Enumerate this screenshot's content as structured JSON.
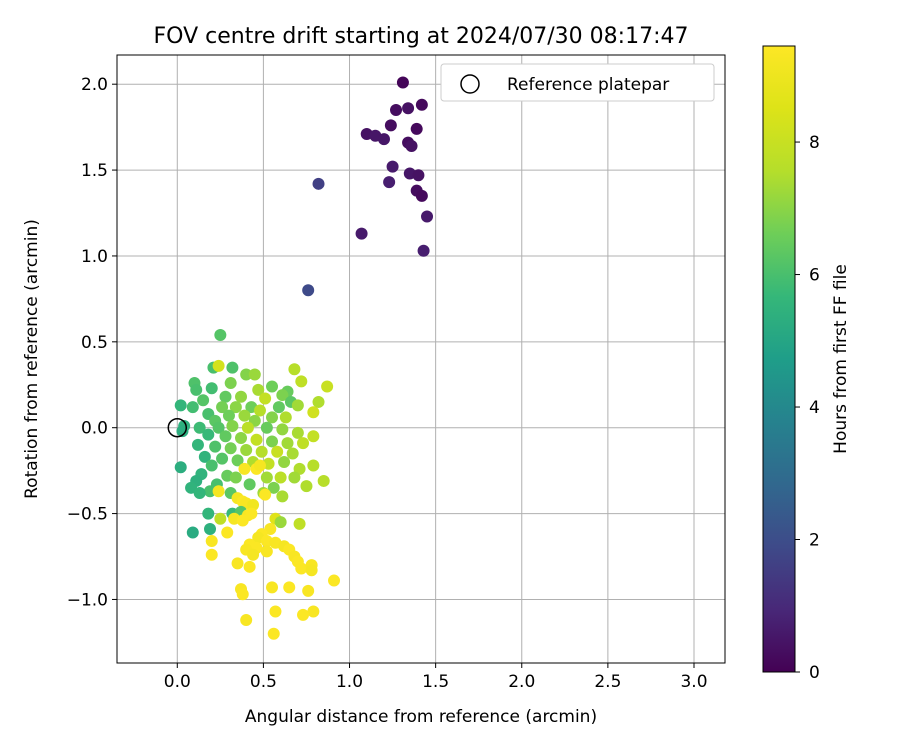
{
  "chart_data": {
    "type": "scatter",
    "title": "FOV centre drift starting at 2024/07/30 08:17:47",
    "xlabel": "Angular distance from reference (arcmin)",
    "ylabel": "Rotation from reference (arcmin)",
    "xlim": [
      -0.35,
      3.18
    ],
    "ylim": [
      -1.37,
      2.17
    ],
    "xticks": [
      0.0,
      0.5,
      1.0,
      1.5,
      2.0,
      2.5,
      3.0
    ],
    "xtick_labels": [
      "0.0",
      "0.5",
      "1.0",
      "1.5",
      "2.0",
      "2.5",
      "3.0"
    ],
    "yticks": [
      -1.0,
      -0.5,
      0.0,
      0.5,
      1.0,
      1.5,
      2.0
    ],
    "ytick_labels": [
      "−1.0",
      "−0.5",
      "0.0",
      "0.5",
      "1.0",
      "1.5",
      "2.0"
    ],
    "grid": true,
    "legend": {
      "position": "top-right",
      "entries": [
        "Reference platepar"
      ]
    },
    "reference_point": {
      "x": 0.0,
      "y": 0.0,
      "marker": "open-circle"
    },
    "colorbar": {
      "label": "Hours from first FF file",
      "colormap": "viridis",
      "range": [
        0,
        9.45
      ],
      "ticks": [
        0,
        2,
        4,
        6,
        8
      ],
      "tick_labels": [
        "0",
        "2",
        "4",
        "6",
        "8"
      ]
    },
    "points": [
      {
        "x": 1.31,
        "y": 2.01,
        "c": 0.1
      },
      {
        "x": 1.42,
        "y": 1.88,
        "c": 0.2
      },
      {
        "x": 1.27,
        "y": 1.85,
        "c": 0.3
      },
      {
        "x": 1.34,
        "y": 1.86,
        "c": 0.4
      },
      {
        "x": 1.24,
        "y": 1.76,
        "c": 0.3
      },
      {
        "x": 1.39,
        "y": 1.74,
        "c": 0.2
      },
      {
        "x": 1.1,
        "y": 1.71,
        "c": 0.4
      },
      {
        "x": 1.15,
        "y": 1.7,
        "c": 0.5
      },
      {
        "x": 1.2,
        "y": 1.68,
        "c": 0.5
      },
      {
        "x": 1.34,
        "y": 1.66,
        "c": 0.3
      },
      {
        "x": 1.36,
        "y": 1.64,
        "c": 0.4
      },
      {
        "x": 1.25,
        "y": 1.52,
        "c": 0.6
      },
      {
        "x": 1.35,
        "y": 1.48,
        "c": 0.5
      },
      {
        "x": 1.4,
        "y": 1.47,
        "c": 0.4
      },
      {
        "x": 1.23,
        "y": 1.43,
        "c": 0.7
      },
      {
        "x": 0.82,
        "y": 1.42,
        "c": 1.6
      },
      {
        "x": 1.39,
        "y": 1.38,
        "c": 0.3
      },
      {
        "x": 1.42,
        "y": 1.35,
        "c": 0.2
      },
      {
        "x": 1.45,
        "y": 1.23,
        "c": 0.6
      },
      {
        "x": 1.07,
        "y": 1.13,
        "c": 0.6
      },
      {
        "x": 1.43,
        "y": 1.03,
        "c": 0.7
      },
      {
        "x": 0.76,
        "y": 0.8,
        "c": 1.9
      },
      {
        "x": 0.25,
        "y": 0.54,
        "c": 6.2
      },
      {
        "x": 0.21,
        "y": 0.35,
        "c": 6.0
      },
      {
        "x": 0.32,
        "y": 0.35,
        "c": 6.1
      },
      {
        "x": 0.24,
        "y": 0.36,
        "c": 8.3
      },
      {
        "x": 0.4,
        "y": 0.31,
        "c": 6.9
      },
      {
        "x": 0.45,
        "y": 0.31,
        "c": 7.2
      },
      {
        "x": 0.68,
        "y": 0.34,
        "c": 7.6
      },
      {
        "x": 0.1,
        "y": 0.26,
        "c": 6.1
      },
      {
        "x": 0.11,
        "y": 0.22,
        "c": 6.0
      },
      {
        "x": 0.31,
        "y": 0.26,
        "c": 6.8
      },
      {
        "x": 0.55,
        "y": 0.24,
        "c": 6.6
      },
      {
        "x": 0.2,
        "y": 0.23,
        "c": 5.9
      },
      {
        "x": 0.47,
        "y": 0.22,
        "c": 7.4
      },
      {
        "x": 0.64,
        "y": 0.21,
        "c": 6.5
      },
      {
        "x": 0.72,
        "y": 0.27,
        "c": 7.8
      },
      {
        "x": 0.87,
        "y": 0.24,
        "c": 8.0
      },
      {
        "x": 0.61,
        "y": 0.19,
        "c": 6.8
      },
      {
        "x": 0.28,
        "y": 0.18,
        "c": 6.4
      },
      {
        "x": 0.37,
        "y": 0.18,
        "c": 7.1
      },
      {
        "x": 0.51,
        "y": 0.17,
        "c": 7.9
      },
      {
        "x": 0.15,
        "y": 0.16,
        "c": 6.2
      },
      {
        "x": 0.66,
        "y": 0.15,
        "c": 6.3
      },
      {
        "x": 0.82,
        "y": 0.15,
        "c": 7.5
      },
      {
        "x": 0.02,
        "y": 0.13,
        "c": 5.6
      },
      {
        "x": 0.09,
        "y": 0.12,
        "c": 5.9
      },
      {
        "x": 0.26,
        "y": 0.12,
        "c": 6.7
      },
      {
        "x": 0.34,
        "y": 0.12,
        "c": 7.0
      },
      {
        "x": 0.43,
        "y": 0.12,
        "c": 6.6
      },
      {
        "x": 0.59,
        "y": 0.12,
        "c": 6.4
      },
      {
        "x": 0.7,
        "y": 0.13,
        "c": 7.3
      },
      {
        "x": 0.79,
        "y": 0.09,
        "c": 8.2
      },
      {
        "x": 0.48,
        "y": 0.1,
        "c": 7.6
      },
      {
        "x": 0.18,
        "y": 0.08,
        "c": 6.0
      },
      {
        "x": 0.3,
        "y": 0.07,
        "c": 6.6
      },
      {
        "x": 0.39,
        "y": 0.07,
        "c": 7.2
      },
      {
        "x": 0.55,
        "y": 0.06,
        "c": 6.9
      },
      {
        "x": 0.63,
        "y": 0.06,
        "c": 7.5
      },
      {
        "x": 0.22,
        "y": 0.04,
        "c": 6.3
      },
      {
        "x": 0.45,
        "y": 0.04,
        "c": 7.0
      },
      {
        "x": 0.04,
        "y": 0.01,
        "c": 5.4
      },
      {
        "x": 0.13,
        "y": 0.0,
        "c": 5.8
      },
      {
        "x": 0.24,
        "y": 0.0,
        "c": 6.2
      },
      {
        "x": 0.32,
        "y": 0.01,
        "c": 6.9
      },
      {
        "x": 0.41,
        "y": 0.0,
        "c": 7.7
      },
      {
        "x": 0.52,
        "y": 0.0,
        "c": 6.5
      },
      {
        "x": 0.61,
        "y": -0.01,
        "c": 7.1
      },
      {
        "x": 0.7,
        "y": -0.03,
        "c": 7.4
      },
      {
        "x": 0.79,
        "y": -0.05,
        "c": 7.9
      },
      {
        "x": 0.73,
        "y": -0.09,
        "c": 7.8
      },
      {
        "x": 0.18,
        "y": -0.04,
        "c": 5.7
      },
      {
        "x": 0.28,
        "y": -0.05,
        "c": 6.4
      },
      {
        "x": 0.37,
        "y": -0.06,
        "c": 7.0
      },
      {
        "x": 0.46,
        "y": -0.07,
        "c": 7.9
      },
      {
        "x": 0.55,
        "y": -0.08,
        "c": 6.8
      },
      {
        "x": 0.64,
        "y": -0.09,
        "c": 7.3
      },
      {
        "x": 0.03,
        "y": -0.02,
        "c": 5.3
      },
      {
        "x": 0.12,
        "y": -0.1,
        "c": 5.6
      },
      {
        "x": 0.22,
        "y": -0.11,
        "c": 6.1
      },
      {
        "x": 0.31,
        "y": -0.12,
        "c": 6.7
      },
      {
        "x": 0.4,
        "y": -0.13,
        "c": 7.2
      },
      {
        "x": 0.49,
        "y": -0.14,
        "c": 7.6
      },
      {
        "x": 0.58,
        "y": -0.14,
        "c": 8.0
      },
      {
        "x": 0.67,
        "y": -0.15,
        "c": 7.4
      },
      {
        "x": 0.16,
        "y": -0.17,
        "c": 5.5
      },
      {
        "x": 0.26,
        "y": -0.18,
        "c": 6.2
      },
      {
        "x": 0.35,
        "y": -0.19,
        "c": 6.6
      },
      {
        "x": 0.44,
        "y": -0.2,
        "c": 7.5
      },
      {
        "x": 0.53,
        "y": -0.21,
        "c": 7.9
      },
      {
        "x": 0.62,
        "y": -0.2,
        "c": 7.1
      },
      {
        "x": 0.71,
        "y": -0.24,
        "c": 7.5
      },
      {
        "x": 0.79,
        "y": -0.22,
        "c": 7.6
      },
      {
        "x": 0.02,
        "y": -0.23,
        "c": 5.3
      },
      {
        "x": 0.2,
        "y": -0.22,
        "c": 6.0
      },
      {
        "x": 0.39,
        "y": -0.24,
        "c": 9.3
      },
      {
        "x": 0.46,
        "y": -0.24,
        "c": 9.4
      },
      {
        "x": 0.48,
        "y": -0.22,
        "c": 9.2
      },
      {
        "x": 0.14,
        "y": -0.27,
        "c": 5.5
      },
      {
        "x": 0.29,
        "y": -0.28,
        "c": 6.5
      },
      {
        "x": 0.34,
        "y": -0.29,
        "c": 6.8
      },
      {
        "x": 0.52,
        "y": -0.29,
        "c": 7.3
      },
      {
        "x": 0.6,
        "y": -0.29,
        "c": 7.7
      },
      {
        "x": 0.68,
        "y": -0.29,
        "c": 7.3
      },
      {
        "x": 0.85,
        "y": -0.31,
        "c": 7.6
      },
      {
        "x": 0.11,
        "y": -0.31,
        "c": 5.4
      },
      {
        "x": 0.23,
        "y": -0.33,
        "c": 6.0
      },
      {
        "x": 0.42,
        "y": -0.33,
        "c": 6.4
      },
      {
        "x": 0.56,
        "y": -0.35,
        "c": 6.8
      },
      {
        "x": 0.75,
        "y": -0.34,
        "c": 7.5
      },
      {
        "x": 0.08,
        "y": -0.35,
        "c": 5.5
      },
      {
        "x": 0.19,
        "y": -0.37,
        "c": 6.0
      },
      {
        "x": 0.24,
        "y": -0.37,
        "c": 9.2
      },
      {
        "x": 0.31,
        "y": -0.38,
        "c": 6.3
      },
      {
        "x": 0.5,
        "y": -0.38,
        "c": 7.3
      },
      {
        "x": 0.51,
        "y": -0.39,
        "c": 9.4
      },
      {
        "x": 0.61,
        "y": -0.4,
        "c": 7.4
      },
      {
        "x": 0.13,
        "y": -0.38,
        "c": 5.6
      },
      {
        "x": 0.35,
        "y": -0.41,
        "c": 9.2
      },
      {
        "x": 0.38,
        "y": -0.43,
        "c": 9.4
      },
      {
        "x": 0.4,
        "y": -0.44,
        "c": 9.3
      },
      {
        "x": 0.44,
        "y": -0.45,
        "c": 9.1
      },
      {
        "x": 0.32,
        "y": -0.5,
        "c": 5.7
      },
      {
        "x": 0.18,
        "y": -0.5,
        "c": 5.6
      },
      {
        "x": 0.37,
        "y": -0.49,
        "c": 6.2
      },
      {
        "x": 0.41,
        "y": -0.51,
        "c": 9.3
      },
      {
        "x": 0.43,
        "y": -0.5,
        "c": 9.4
      },
      {
        "x": 0.25,
        "y": -0.53,
        "c": 7.8
      },
      {
        "x": 0.33,
        "y": -0.53,
        "c": 9.2
      },
      {
        "x": 0.38,
        "y": -0.54,
        "c": 9.4
      },
      {
        "x": 0.57,
        "y": -0.53,
        "c": 8.6
      },
      {
        "x": 0.6,
        "y": -0.55,
        "c": 7.2
      },
      {
        "x": 0.71,
        "y": -0.56,
        "c": 7.8
      },
      {
        "x": 0.19,
        "y": -0.59,
        "c": 5.4
      },
      {
        "x": 0.29,
        "y": -0.61,
        "c": 9.4
      },
      {
        "x": 0.09,
        "y": -0.61,
        "c": 5.2
      },
      {
        "x": 0.54,
        "y": -0.59,
        "c": 9.3
      },
      {
        "x": 0.49,
        "y": -0.62,
        "c": 9.4
      },
      {
        "x": 0.47,
        "y": -0.64,
        "c": 9.2
      },
      {
        "x": 0.2,
        "y": -0.66,
        "c": 9.3
      },
      {
        "x": 0.52,
        "y": -0.66,
        "c": 9.4
      },
      {
        "x": 0.42,
        "y": -0.68,
        "c": 9.4
      },
      {
        "x": 0.57,
        "y": -0.67,
        "c": 9.3
      },
      {
        "x": 0.62,
        "y": -0.69,
        "c": 9.2
      },
      {
        "x": 0.46,
        "y": -0.7,
        "c": 9.4
      },
      {
        "x": 0.4,
        "y": -0.71,
        "c": 9.3
      },
      {
        "x": 0.65,
        "y": -0.71,
        "c": 9.4
      },
      {
        "x": 0.52,
        "y": -0.72,
        "c": 9.3
      },
      {
        "x": 0.2,
        "y": -0.74,
        "c": 9.4
      },
      {
        "x": 0.44,
        "y": -0.74,
        "c": 9.2
      },
      {
        "x": 0.68,
        "y": -0.75,
        "c": 9.3
      },
      {
        "x": 0.7,
        "y": -0.78,
        "c": 9.4
      },
      {
        "x": 0.35,
        "y": -0.79,
        "c": 9.3
      },
      {
        "x": 0.42,
        "y": -0.81,
        "c": 9.4
      },
      {
        "x": 0.72,
        "y": -0.82,
        "c": 9.4
      },
      {
        "x": 0.78,
        "y": -0.8,
        "c": 9.3
      },
      {
        "x": 0.78,
        "y": -0.83,
        "c": 9.2
      },
      {
        "x": 0.91,
        "y": -0.89,
        "c": 9.4
      },
      {
        "x": 0.55,
        "y": -0.93,
        "c": 9.3
      },
      {
        "x": 0.65,
        "y": -0.93,
        "c": 9.4
      },
      {
        "x": 0.37,
        "y": -0.94,
        "c": 9.3
      },
      {
        "x": 0.38,
        "y": -0.97,
        "c": 9.4
      },
      {
        "x": 0.76,
        "y": -0.95,
        "c": 9.3
      },
      {
        "x": 0.57,
        "y": -1.07,
        "c": 9.4
      },
      {
        "x": 0.79,
        "y": -1.07,
        "c": 9.3
      },
      {
        "x": 0.73,
        "y": -1.09,
        "c": 9.4
      },
      {
        "x": 0.4,
        "y": -1.12,
        "c": 9.3
      },
      {
        "x": 0.56,
        "y": -1.2,
        "c": 9.4
      }
    ]
  }
}
